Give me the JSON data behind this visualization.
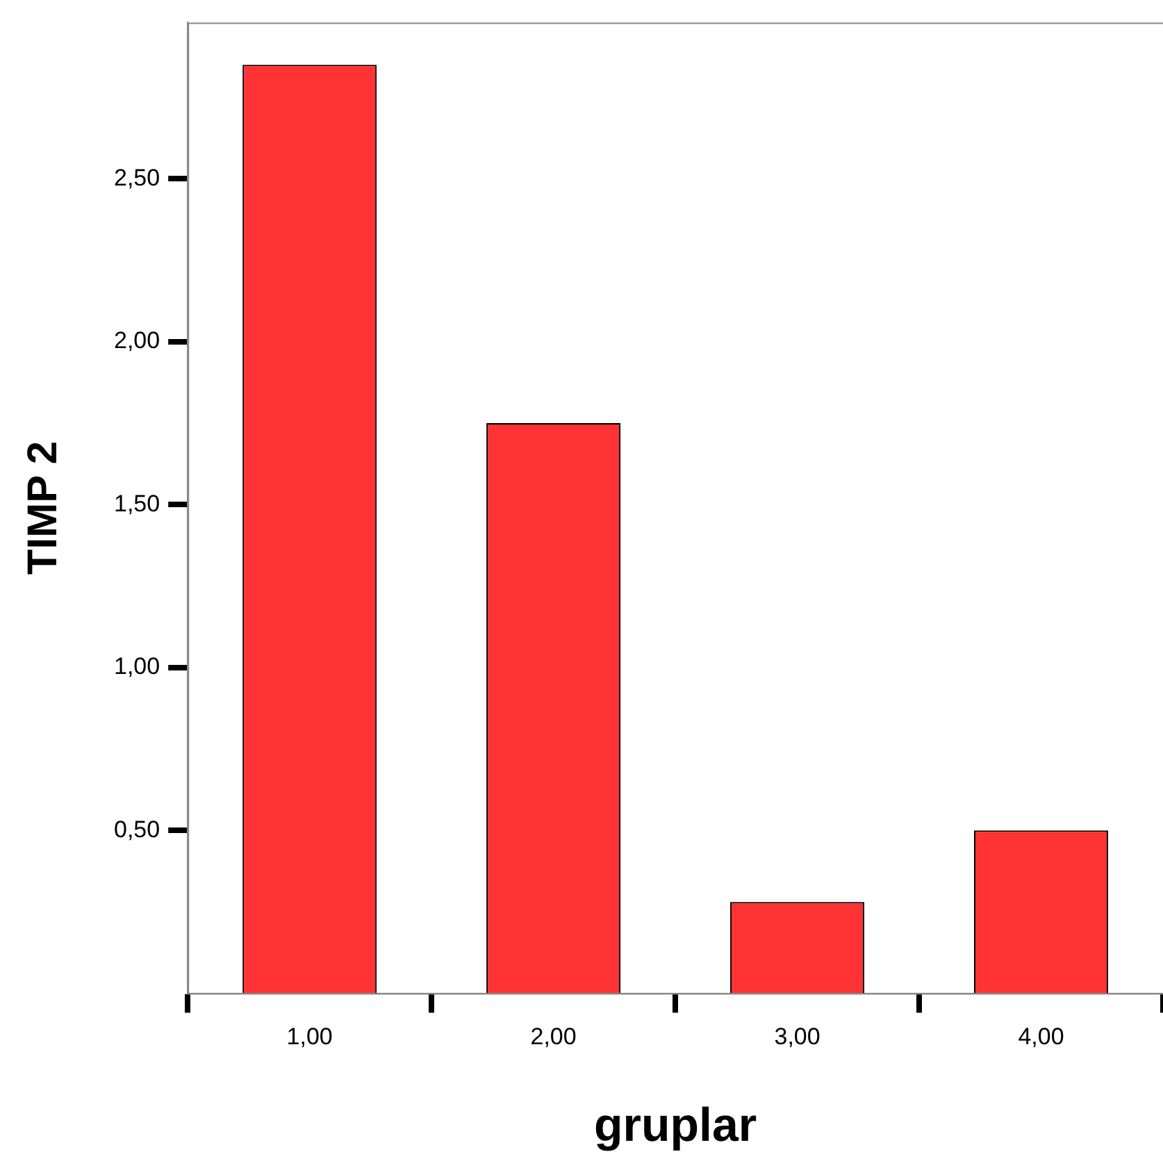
{
  "chart_data": {
    "type": "bar",
    "xlabel": "gruplar",
    "ylabel": "TIMP 2",
    "categories": [
      "1,00",
      "2,00",
      "3,00",
      "4,00"
    ],
    "values": [
      2.85,
      1.75,
      0.28,
      0.5
    ],
    "color": "#ff3333",
    "ylim": [
      0,
      2.98
    ],
    "yticks": [
      {
        "value": 0.5,
        "label": "0,50"
      },
      {
        "value": 1,
        "label": "1,00"
      },
      {
        "value": 1.5,
        "label": "1,50"
      },
      {
        "value": 2,
        "label": "2,00"
      },
      {
        "value": 2.5,
        "label": "2,50"
      }
    ],
    "grid": false,
    "legend": false
  }
}
